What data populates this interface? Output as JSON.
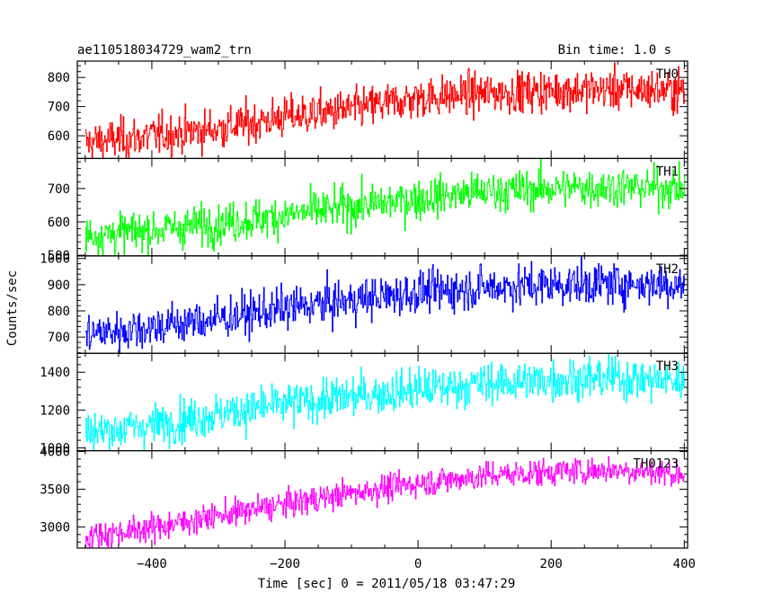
{
  "chart_data": {
    "type": "line",
    "title_left": "ae110518034729_wam2_trn",
    "title_right": "Bin time: 1.0 s",
    "xlabel": "Time [sec] 0 = 2011/05/18 03:47:29",
    "ylabel": "Counts/sec",
    "xlim": [
      -512,
      405
    ],
    "x_ticks": [
      -400,
      -200,
      0,
      200,
      400
    ],
    "x_tick_labels": [
      "−400",
      "−200",
      "0",
      "200",
      "400"
    ],
    "bin_time": 1.0,
    "x_start": -500,
    "x_end": 400,
    "grid": false,
    "panels": [
      {
        "name": "TH0",
        "color": "#ff0000",
        "ylim": [
          522,
          856
        ],
        "y_ticks": [
          600,
          700,
          800
        ],
        "trend": [
          [
            -500,
            575
          ],
          [
            -400,
            600
          ],
          [
            -300,
            625
          ],
          [
            -200,
            665
          ],
          [
            -100,
            690
          ],
          [
            0,
            730
          ],
          [
            100,
            745
          ],
          [
            200,
            755
          ],
          [
            300,
            760
          ],
          [
            400,
            755
          ]
        ],
        "noise": 35
      },
      {
        "name": "TH1",
        "color": "#00ff00",
        "ylim": [
          498,
          790
        ],
        "y_ticks": [
          500,
          600,
          700
        ],
        "trend": [
          [
            -500,
            560
          ],
          [
            -400,
            575
          ],
          [
            -300,
            595
          ],
          [
            -200,
            620
          ],
          [
            -100,
            645
          ],
          [
            0,
            670
          ],
          [
            100,
            690
          ],
          [
            200,
            700
          ],
          [
            300,
            705
          ],
          [
            400,
            700
          ]
        ],
        "noise": 30
      },
      {
        "name": "TH2",
        "color": "#0000ff",
        "ylim": [
          638,
          1010
        ],
        "y_ticks": [
          700,
          800,
          900,
          1000
        ],
        "trend": [
          [
            -500,
            710
          ],
          [
            -400,
            740
          ],
          [
            -300,
            770
          ],
          [
            -200,
            810
          ],
          [
            -100,
            840
          ],
          [
            0,
            870
          ],
          [
            100,
            890
          ],
          [
            200,
            900
          ],
          [
            300,
            905
          ],
          [
            400,
            900
          ]
        ],
        "noise": 40
      },
      {
        "name": "TH3",
        "color": "#00ffff",
        "ylim": [
          985,
          1500
        ],
        "y_ticks": [
          1000,
          1200,
          1400
        ],
        "trend": [
          [
            -500,
            1080
          ],
          [
            -400,
            1120
          ],
          [
            -300,
            1180
          ],
          [
            -200,
            1230
          ],
          [
            -100,
            1270
          ],
          [
            0,
            1310
          ],
          [
            100,
            1340
          ],
          [
            200,
            1360
          ],
          [
            300,
            1370
          ],
          [
            400,
            1350
          ]
        ],
        "noise": 55
      },
      {
        "name": "TH0123",
        "color": "#ff00ff",
        "ylim": [
          2720,
          4010
        ],
        "y_ticks": [
          3000,
          3500,
          4000
        ],
        "trend": [
          [
            -500,
            2870
          ],
          [
            -400,
            2990
          ],
          [
            -300,
            3150
          ],
          [
            -200,
            3300
          ],
          [
            -100,
            3450
          ],
          [
            0,
            3580
          ],
          [
            100,
            3680
          ],
          [
            200,
            3730
          ],
          [
            300,
            3760
          ],
          [
            400,
            3700
          ]
        ],
        "noise": 90
      }
    ]
  }
}
